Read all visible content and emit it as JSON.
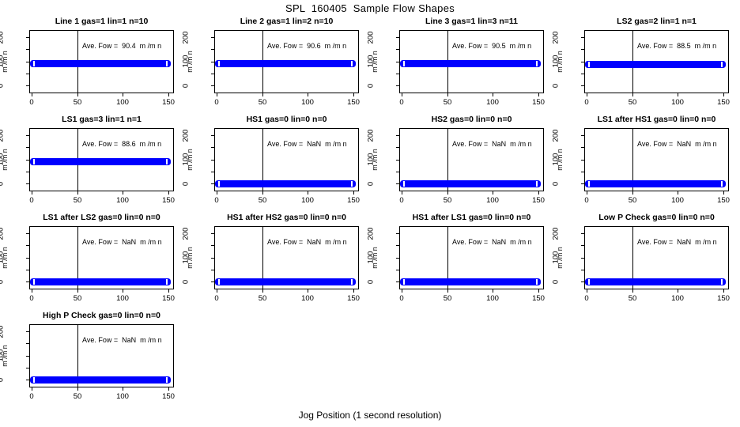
{
  "chart_data": {
    "type": "line",
    "title": "SPL  160405  Sample Flow Shapes",
    "xlabel": "Jog Position (1 second resolution)",
    "ylabel": "m /m n",
    "x_ticks": [
      0,
      50,
      100,
      150
    ],
    "x_tick_labels": [
      "0",
      "50",
      "100",
      "150"
    ],
    "y_ticks_all": [
      0,
      50,
      100,
      150,
      200
    ],
    "y_tick_labeled_values": [
      0,
      100,
      200
    ],
    "y_tick_labels": [
      "0",
      "100",
      "200"
    ],
    "xlim": [
      -6,
      158
    ],
    "ylim": [
      -33,
      229
    ],
    "vline_x": 50,
    "bar_color": "#0000ff",
    "axis_color": "#000000",
    "background_color": "#ffffff",
    "bar_x_span": [
      0,
      152
    ],
    "panels": [
      {
        "title": "Line 1 gas=1 lin=1 n=10",
        "annotation": "Ave. Fow =  90.4  m /m n",
        "ave_flow": 90.4,
        "bar_value": 90.4
      },
      {
        "title": "Line 2 gas=1 lin=2 n=10",
        "annotation": "Ave. Fow =  90.6  m /m n",
        "ave_flow": 90.6,
        "bar_value": 90.6
      },
      {
        "title": "Line 3 gas=1 lin=3 n=11",
        "annotation": "Ave. Fow =  90.5  m /m n",
        "ave_flow": 90.5,
        "bar_value": 90.5
      },
      {
        "title": "LS2 gas=2 lin=1 n=1",
        "annotation": "Ave. Fow =  88.5  m /m n",
        "ave_flow": 88.5,
        "bar_value": 88.5
      },
      {
        "title": "LS1 gas=3 lin=1 n=1",
        "annotation": "Ave. Fow =  88.6  m /m n",
        "ave_flow": 88.6,
        "bar_value": 88.6
      },
      {
        "title": "HS1 gas=0 lin=0 n=0",
        "annotation": "Ave. Fow =  NaN  m /m n",
        "ave_flow": "NaN",
        "bar_value": 0
      },
      {
        "title": "HS2 gas=0 lin=0 n=0",
        "annotation": "Ave. Fow =  NaN  m /m n",
        "ave_flow": "NaN",
        "bar_value": 0
      },
      {
        "title": "LS1 after HS1 gas=0 lin=0 n=0",
        "annotation": "Ave. Fow =  NaN  m /m n",
        "ave_flow": "NaN",
        "bar_value": 0
      },
      {
        "title": "LS1 after LS2 gas=0 lin=0 n=0",
        "annotation": "Ave. Fow =  NaN  m /m n",
        "ave_flow": "NaN",
        "bar_value": 0
      },
      {
        "title": "HS1 after HS2 gas=0 lin=0 n=0",
        "annotation": "Ave. Fow =  NaN  m /m n",
        "ave_flow": "NaN",
        "bar_value": 0
      },
      {
        "title": "HS1 after LS1 gas=0 lin=0 n=0",
        "annotation": "Ave. Fow =  NaN  m /m n",
        "ave_flow": "NaN",
        "bar_value": 0
      },
      {
        "title": "Low P Check gas=0 lin=0 n=0",
        "annotation": "Ave. Fow =  NaN  m /m n",
        "ave_flow": "NaN",
        "bar_value": 0
      },
      {
        "title": "High P Check gas=0 lin=0 n=0",
        "annotation": "Ave. Fow =  NaN  m /m n",
        "ave_flow": "NaN",
        "bar_value": 0
      }
    ]
  }
}
